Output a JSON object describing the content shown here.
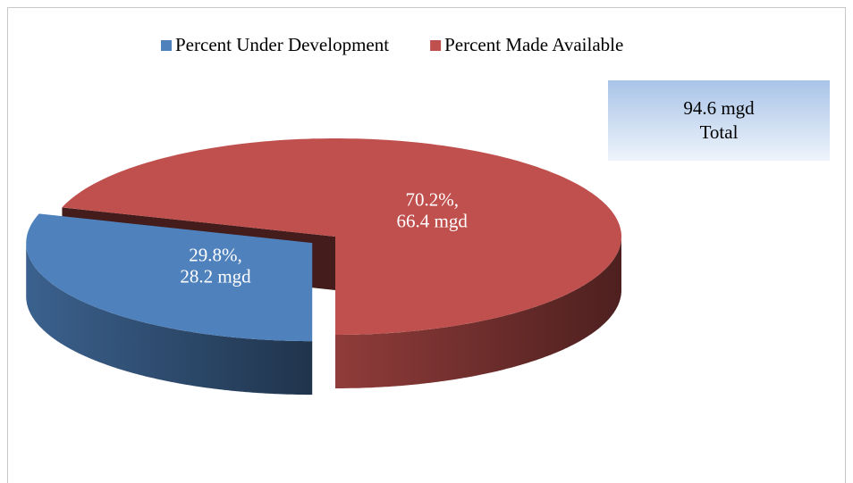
{
  "chart_data": {
    "type": "pie",
    "categories": [
      "Percent Under Development",
      "Percent Made Available"
    ],
    "values": [
      29.8,
      70.2
    ],
    "value_labels": [
      [
        "29.8%,",
        "28.2 mgd"
      ],
      [
        "70.2%,",
        "66.4 mgd"
      ]
    ],
    "colors": [
      "#4f81bd",
      "#c0504d"
    ],
    "exploded": [
      true,
      false
    ],
    "annotation": [
      "94.6 mgd",
      "Total"
    ],
    "legend": "top"
  }
}
